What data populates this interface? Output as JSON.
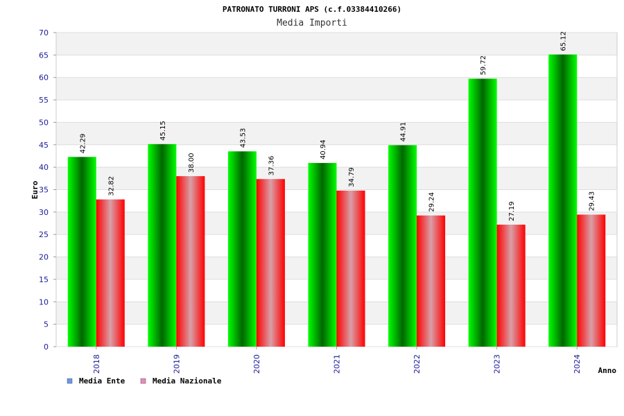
{
  "chart_data": {
    "type": "bar",
    "title": "PATRONATO TURRONI APS (c.f.03384410266)",
    "subtitle": "Media Importi",
    "xlabel": "Anno",
    "ylabel": "Euro",
    "ylim": [
      0,
      70
    ],
    "yticks": [
      0,
      5,
      10,
      15,
      20,
      25,
      30,
      35,
      40,
      45,
      50,
      55,
      60,
      65,
      70
    ],
    "categories": [
      "2018",
      "2019",
      "2020",
      "2021",
      "2022",
      "2023",
      "2024"
    ],
    "series": [
      {
        "name": "Media Ente",
        "values": [
          42.29,
          45.15,
          43.53,
          40.94,
          44.91,
          59.72,
          65.12
        ],
        "labels": [
          "42.29",
          "45.15",
          "43.53",
          "40.94",
          "44.91",
          "59.72",
          "65.12"
        ],
        "color": "#00cc00"
      },
      {
        "name": "Media Nazionale",
        "values": [
          32.82,
          38.0,
          37.36,
          34.79,
          29.24,
          27.19,
          29.43
        ],
        "labels": [
          "32.82",
          "38.00",
          "37.36",
          "34.79",
          "29.24",
          "27.19",
          "29.43"
        ],
        "color": "#ff0000"
      }
    ],
    "legend": {
      "position": "bottom-left",
      "items": [
        {
          "label": "Media Ente",
          "swatch_color": "#6699ee"
        },
        {
          "label": "Media Nazionale",
          "swatch_color": "#ee88bb"
        }
      ]
    },
    "grid": true,
    "band_colors": [
      "#ffffff",
      "#f2f2f2"
    ]
  }
}
